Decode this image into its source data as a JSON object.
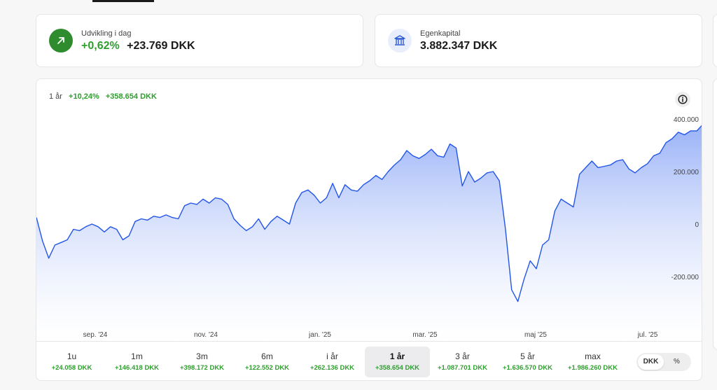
{
  "kpis": {
    "today": {
      "label": "Udvikling i dag",
      "pct": "+0,62%",
      "amount": "+23.769 DKK",
      "icon": "arrow-up-right-icon",
      "color": "#2e8b2e"
    },
    "equity": {
      "label": "Egenkapital",
      "amount": "3.882.347 DKK",
      "icon": "bank-icon"
    }
  },
  "chart": {
    "period": "1 år",
    "pct": "+10,24%",
    "amount": "+358.654 DKK",
    "info_icon": "info-icon"
  },
  "chart_data": {
    "type": "area",
    "series_color": "#2255e8",
    "y_ticks": [
      "400.000",
      "200.000",
      "0",
      "-200.000"
    ],
    "y_tick_values": [
      400000,
      200000,
      0,
      -200000
    ],
    "ylim": [
      -400000,
      420000
    ],
    "x_ticks": [
      "sep. '24",
      "nov. '24",
      "jan. '25",
      "mar. '25",
      "maj '25",
      "jul. '25"
    ],
    "values": [
      25000,
      -65000,
      -130000,
      -80000,
      -70000,
      -60000,
      -20000,
      -25000,
      -10000,
      0,
      -10000,
      -30000,
      -10000,
      -20000,
      -60000,
      -45000,
      10000,
      20000,
      15000,
      30000,
      25000,
      35000,
      25000,
      20000,
      70000,
      80000,
      75000,
      95000,
      80000,
      100000,
      95000,
      75000,
      20000,
      -5000,
      -25000,
      -10000,
      20000,
      -20000,
      10000,
      30000,
      15000,
      0,
      80000,
      120000,
      130000,
      110000,
      80000,
      100000,
      155000,
      100000,
      150000,
      130000,
      125000,
      150000,
      165000,
      185000,
      170000,
      200000,
      225000,
      245000,
      280000,
      260000,
      250000,
      265000,
      285000,
      260000,
      255000,
      305000,
      290000,
      145000,
      200000,
      160000,
      175000,
      195000,
      200000,
      165000,
      -20000,
      -250000,
      -295000,
      -210000,
      -140000,
      -170000,
      -80000,
      -60000,
      50000,
      95000,
      80000,
      65000,
      190000,
      215000,
      240000,
      215000,
      220000,
      225000,
      240000,
      245000,
      210000,
      195000,
      215000,
      230000,
      260000,
      270000,
      310000,
      325000,
      350000,
      340000,
      355000,
      355000,
      380000
    ],
    "annotations": []
  },
  "ranges": [
    {
      "label": "1u",
      "value": "+24.058 DKK"
    },
    {
      "label": "1m",
      "value": "+146.418 DKK"
    },
    {
      "label": "3m",
      "value": "+398.172 DKK"
    },
    {
      "label": "6m",
      "value": "+122.552 DKK"
    },
    {
      "label": "i år",
      "value": "+262.136 DKK"
    },
    {
      "label": "1 år",
      "value": "+358.654 DKK",
      "active": true
    },
    {
      "label": "3 år",
      "value": "+1.087.701 DKK"
    },
    {
      "label": "5 år",
      "value": "+1.636.570 DKK"
    },
    {
      "label": "max",
      "value": "+1.986.260 DKK"
    }
  ],
  "currency_toggle": {
    "options": [
      "DKK",
      "%"
    ],
    "selected": "DKK"
  }
}
